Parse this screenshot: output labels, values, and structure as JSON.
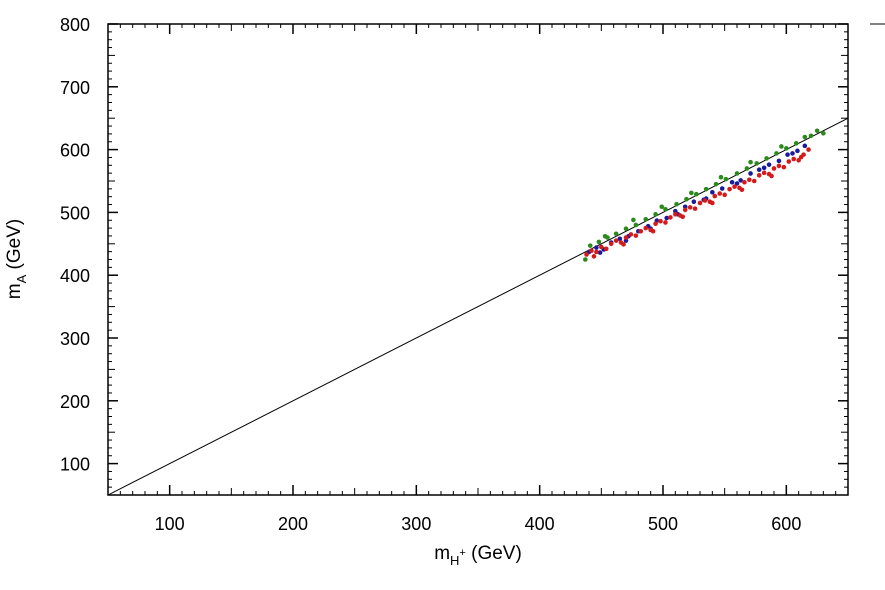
{
  "chart_data": {
    "type": "scatter",
    "title": "",
    "xlabel": {
      "main": "m",
      "sub": "H",
      "sup": "+",
      "unit": " (GeV)"
    },
    "ylabel": {
      "main": "m",
      "sub": "A",
      "unit": " (GeV)"
    },
    "xlim": [
      50,
      650
    ],
    "ylim": [
      50,
      800
    ],
    "xticks": [
      100,
      200,
      300,
      400,
      500,
      600
    ],
    "yticks": [
      100,
      200,
      300,
      400,
      500,
      600,
      700,
      800
    ],
    "grid": false,
    "reference_line": {
      "description": "diagonal",
      "points": [
        [
          50,
          50
        ],
        [
          650,
          650
        ]
      ]
    },
    "series": [
      {
        "color": "#1a1a9a",
        "points": [
          [
            440,
            437
          ],
          [
            446,
            444
          ],
          [
            452,
            441
          ],
          [
            458,
            452
          ],
          [
            465,
            458
          ],
          [
            472,
            462
          ],
          [
            480,
            470
          ],
          [
            488,
            478
          ],
          [
            495,
            487
          ],
          [
            503,
            491
          ],
          [
            510,
            502
          ],
          [
            518,
            509
          ],
          [
            525,
            517
          ],
          [
            533,
            520
          ],
          [
            540,
            532
          ],
          [
            548,
            538
          ],
          [
            556,
            548
          ],
          [
            563,
            551
          ],
          [
            571,
            562
          ],
          [
            578,
            568
          ],
          [
            586,
            576
          ],
          [
            594,
            582
          ],
          [
            601,
            592
          ],
          [
            609,
            598
          ],
          [
            615,
            606
          ],
          [
            449,
            436
          ],
          [
            470,
            455
          ],
          [
            490,
            474
          ],
          [
            512,
            497
          ],
          [
            535,
            522
          ],
          [
            560,
            546
          ],
          [
            582,
            571
          ],
          [
            605,
            594
          ]
        ]
      },
      {
        "color": "#2a8a1a",
        "points": [
          [
            437,
            425
          ],
          [
            441,
            447
          ],
          [
            448,
            453
          ],
          [
            455,
            460
          ],
          [
            462,
            466
          ],
          [
            470,
            474
          ],
          [
            478,
            480
          ],
          [
            486,
            489
          ],
          [
            494,
            497
          ],
          [
            502,
            505
          ],
          [
            511,
            513
          ],
          [
            519,
            521
          ],
          [
            527,
            529
          ],
          [
            535,
            537
          ],
          [
            543,
            545
          ],
          [
            551,
            553
          ],
          [
            560,
            562
          ],
          [
            568,
            570
          ],
          [
            576,
            578
          ],
          [
            584,
            586
          ],
          [
            592,
            594
          ],
          [
            600,
            602
          ],
          [
            608,
            610
          ],
          [
            615,
            620
          ],
          [
            620,
            622
          ],
          [
            625,
            630
          ],
          [
            630,
            626
          ],
          [
            453,
            462
          ],
          [
            476,
            488
          ],
          [
            499,
            509
          ],
          [
            523,
            531
          ],
          [
            547,
            556
          ],
          [
            571,
            580
          ],
          [
            596,
            605
          ]
        ]
      },
      {
        "color": "#d41a1a",
        "points": [
          [
            438,
            433
          ],
          [
            442,
            439
          ],
          [
            446,
            437
          ],
          [
            450,
            445
          ],
          [
            454,
            442
          ],
          [
            458,
            450
          ],
          [
            462,
            455
          ],
          [
            466,
            452
          ],
          [
            470,
            460
          ],
          [
            474,
            465
          ],
          [
            478,
            463
          ],
          [
            482,
            470
          ],
          [
            486,
            475
          ],
          [
            490,
            472
          ],
          [
            494,
            482
          ],
          [
            498,
            486
          ],
          [
            502,
            484
          ],
          [
            506,
            492
          ],
          [
            510,
            497
          ],
          [
            514,
            495
          ],
          [
            518,
            504
          ],
          [
            522,
            508
          ],
          [
            526,
            506
          ],
          [
            530,
            515
          ],
          [
            534,
            519
          ],
          [
            538,
            517
          ],
          [
            542,
            526
          ],
          [
            546,
            530
          ],
          [
            550,
            528
          ],
          [
            554,
            537
          ],
          [
            558,
            541
          ],
          [
            562,
            539
          ],
          [
            566,
            548
          ],
          [
            570,
            552
          ],
          [
            574,
            550
          ],
          [
            578,
            559
          ],
          [
            582,
            563
          ],
          [
            586,
            561
          ],
          [
            590,
            570
          ],
          [
            594,
            574
          ],
          [
            598,
            572
          ],
          [
            602,
            581
          ],
          [
            606,
            585
          ],
          [
            610,
            583
          ],
          [
            614,
            592
          ],
          [
            618,
            600
          ],
          [
            444,
            430
          ],
          [
            468,
            449
          ],
          [
            492,
            470
          ],
          [
            516,
            493
          ],
          [
            540,
            515
          ],
          [
            564,
            536
          ],
          [
            588,
            558
          ],
          [
            612,
            588
          ]
        ]
      }
    ]
  }
}
